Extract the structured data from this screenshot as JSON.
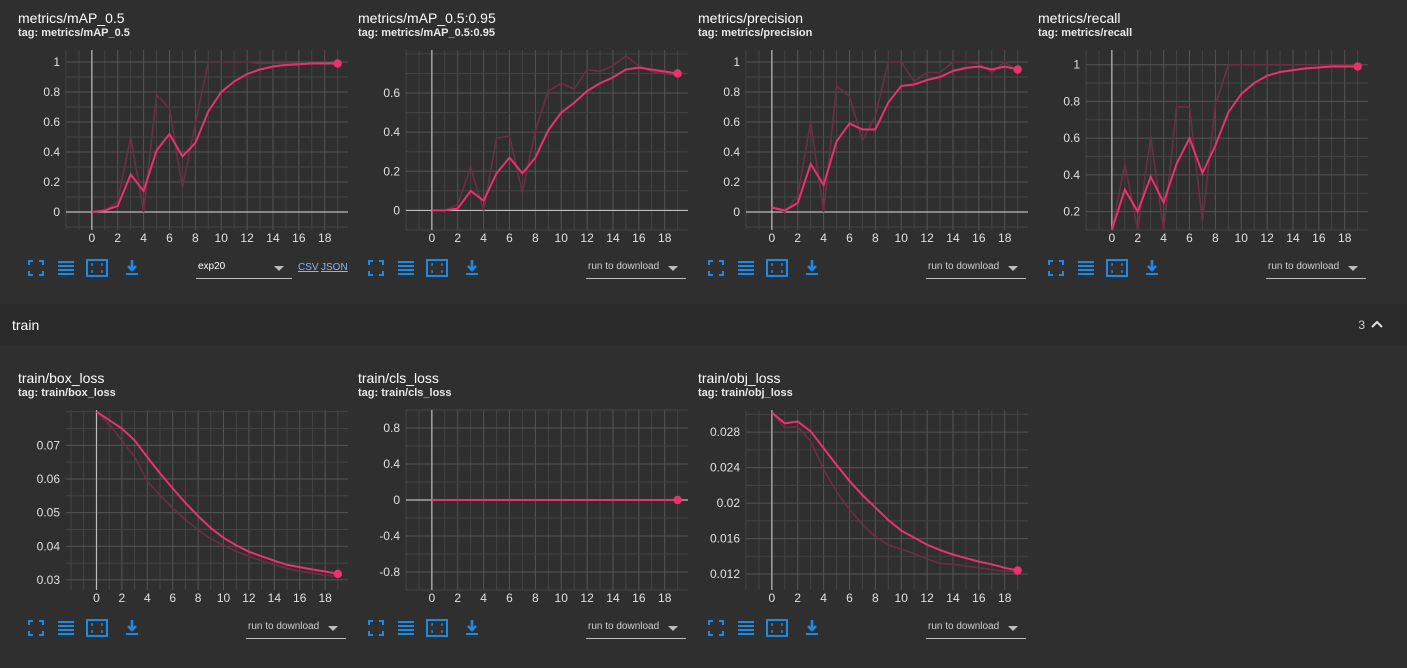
{
  "charts_top": [
    {
      "title": "metrics/mAP_0.5",
      "tag": "tag: metrics/mAP_0.5",
      "run_selector": "exp20",
      "links": [
        "CSV",
        "JSON"
      ]
    },
    {
      "title": "metrics/mAP_0.5:0.95",
      "tag": "tag: metrics/mAP_0.5:0.95",
      "run_selector": "run to download"
    },
    {
      "title": "metrics/precision",
      "tag": "tag: metrics/precision",
      "run_selector": "run to download"
    },
    {
      "title": "metrics/recall",
      "tag": "tag: metrics/recall",
      "run_selector": "run to download"
    }
  ],
  "section": {
    "title": "train",
    "count": "3"
  },
  "charts_bottom": [
    {
      "title": "train/box_loss",
      "tag": "tag: train/box_loss",
      "run_selector": "run to download"
    },
    {
      "title": "train/cls_loss",
      "tag": "tag: train/cls_loss",
      "run_selector": "run to download"
    },
    {
      "title": "train/obj_loss",
      "tag": "tag: train/obj_loss",
      "run_selector": "run to download"
    }
  ],
  "colors": {
    "smoothed": "#e8336d",
    "raw": "#6b2f44",
    "grid": "#5a5a5a",
    "axis": "#bdbdbd",
    "button": "#1e88e5"
  },
  "chart_data": [
    {
      "type": "line",
      "title": "metrics/mAP_0.5",
      "x": [
        0,
        1,
        2,
        3,
        4,
        5,
        6,
        7,
        8,
        9,
        10,
        11,
        12,
        13,
        14,
        15,
        16,
        17,
        18,
        19
      ],
      "series": [
        {
          "values": [
            0.0,
            0.01,
            0.04,
            0.25,
            0.14,
            0.41,
            0.52,
            0.37,
            0.46,
            0.67,
            0.8,
            0.87,
            0.92,
            0.95,
            0.97,
            0.98,
            0.985,
            0.99,
            0.99,
            0.99
          ]
        },
        {
          "values": [
            0.0,
            0.01,
            0.07,
            0.5,
            0.0,
            0.78,
            0.69,
            0.16,
            0.59,
            1.0,
            1.0,
            1.0,
            1.0,
            0.99,
            0.99,
            0.99,
            0.99,
            0.99,
            0.99,
            0.99
          ]
        }
      ],
      "xlim": [
        -2,
        19.8
      ],
      "ylim": [
        -0.12,
        1.08
      ],
      "yticks": [
        0,
        0.2,
        0.4,
        0.6,
        0.8,
        1
      ],
      "xticks": [
        0,
        2,
        4,
        6,
        8,
        10,
        12,
        14,
        16,
        18
      ]
    },
    {
      "type": "line",
      "title": "metrics/mAP_0.5:0.95",
      "x": [
        0,
        1,
        2,
        3,
        4,
        5,
        6,
        7,
        8,
        9,
        10,
        11,
        12,
        13,
        14,
        15,
        16,
        17,
        18,
        19
      ],
      "series": [
        {
          "values": [
            0.0,
            0.0,
            0.01,
            0.1,
            0.05,
            0.19,
            0.27,
            0.19,
            0.27,
            0.41,
            0.5,
            0.55,
            0.61,
            0.65,
            0.68,
            0.72,
            0.73,
            0.72,
            0.71,
            0.7
          ]
        },
        {
          "values": [
            0.0,
            0.0,
            0.03,
            0.22,
            0.0,
            0.37,
            0.38,
            0.09,
            0.41,
            0.61,
            0.65,
            0.62,
            0.72,
            0.71,
            0.74,
            0.79,
            0.74,
            0.71,
            0.7,
            0.69
          ]
        }
      ],
      "xlim": [
        -2,
        19.8
      ],
      "ylim": [
        -0.1,
        0.82
      ],
      "yticks": [
        0,
        0.2,
        0.4,
        0.6
      ],
      "xticks": [
        0,
        2,
        4,
        6,
        8,
        10,
        12,
        14,
        16,
        18
      ]
    },
    {
      "type": "line",
      "title": "metrics/precision",
      "x": [
        0,
        1,
        2,
        3,
        4,
        5,
        6,
        7,
        8,
        9,
        10,
        11,
        12,
        13,
        14,
        15,
        16,
        17,
        18,
        19
      ],
      "series": [
        {
          "values": [
            0.03,
            0.01,
            0.06,
            0.32,
            0.18,
            0.47,
            0.59,
            0.55,
            0.55,
            0.73,
            0.84,
            0.85,
            0.88,
            0.9,
            0.94,
            0.96,
            0.97,
            0.95,
            0.97,
            0.95
          ]
        },
        {
          "values": [
            0.03,
            0.0,
            0.11,
            0.6,
            0.0,
            0.84,
            0.77,
            0.48,
            0.64,
            1.0,
            1.0,
            0.87,
            0.93,
            0.93,
            1.0,
            1.0,
            0.99,
            0.93,
            1.0,
            0.94
          ]
        }
      ],
      "xlim": [
        -2,
        19.8
      ],
      "ylim": [
        -0.12,
        1.08
      ],
      "yticks": [
        0,
        0.2,
        0.4,
        0.6,
        0.8,
        1
      ],
      "xticks": [
        0,
        2,
        4,
        6,
        8,
        10,
        12,
        14,
        16,
        18
      ]
    },
    {
      "type": "line",
      "title": "metrics/recall",
      "x": [
        0,
        1,
        2,
        3,
        4,
        5,
        6,
        7,
        8,
        9,
        10,
        11,
        12,
        13,
        14,
        15,
        16,
        17,
        18,
        19
      ],
      "series": [
        {
          "values": [
            0.1,
            0.32,
            0.2,
            0.39,
            0.25,
            0.46,
            0.6,
            0.41,
            0.56,
            0.74,
            0.84,
            0.9,
            0.94,
            0.96,
            0.97,
            0.98,
            0.985,
            0.99,
            0.99,
            0.99
          ]
        },
        {
          "values": [
            0.1,
            0.46,
            0.1,
            0.61,
            0.1,
            0.77,
            0.77,
            0.15,
            0.78,
            1.0,
            1.0,
            1.0,
            1.0,
            1.0,
            1.0,
            1.0,
            1.0,
            1.0,
            1.0,
            1.0
          ]
        }
      ],
      "xlim": [
        -2,
        19.8
      ],
      "ylim": [
        0.1,
        1.08
      ],
      "yticks": [
        0.2,
        0.4,
        0.6,
        0.8,
        1
      ],
      "xticks": [
        0,
        2,
        4,
        6,
        8,
        10,
        12,
        14,
        16,
        18
      ]
    },
    {
      "type": "line",
      "title": "train/box_loss",
      "x": [
        0,
        1,
        2,
        3,
        4,
        5,
        6,
        7,
        8,
        9,
        10,
        11,
        12,
        13,
        14,
        15,
        16,
        17,
        18,
        19
      ],
      "series": [
        {
          "values": [
            0.08,
            0.0775,
            0.075,
            0.0715,
            0.0665,
            0.0617,
            0.0572,
            0.0529,
            0.049,
            0.0454,
            0.0425,
            0.0403,
            0.0384,
            0.037,
            0.0357,
            0.0345,
            0.0338,
            0.0331,
            0.0325,
            0.0318
          ]
        },
        {
          "values": [
            0.08,
            0.0762,
            0.0715,
            0.0665,
            0.0593,
            0.0552,
            0.0513,
            0.0479,
            0.0449,
            0.0422,
            0.0403,
            0.0385,
            0.037,
            0.0357,
            0.0345,
            0.0334,
            0.0326,
            0.032,
            0.0314,
            0.031
          ]
        }
      ],
      "xlim": [
        -2.4,
        19.8
      ],
      "ylim": [
        0.027,
        0.0805
      ],
      "yticks": [
        0.03,
        0.04,
        0.05,
        0.06,
        0.07
      ],
      "xticks": [
        0,
        2,
        4,
        6,
        8,
        10,
        12,
        14,
        16,
        18
      ]
    },
    {
      "type": "line",
      "title": "train/cls_loss",
      "x": [
        0,
        1,
        2,
        3,
        4,
        5,
        6,
        7,
        8,
        9,
        10,
        11,
        12,
        13,
        14,
        15,
        16,
        17,
        18,
        19
      ],
      "series": [
        {
          "values": [
            0,
            0,
            0,
            0,
            0,
            0,
            0,
            0,
            0,
            0,
            0,
            0,
            0,
            0,
            0,
            0,
            0,
            0,
            0,
            0
          ]
        },
        {
          "values": [
            0,
            0,
            0,
            0,
            0,
            0,
            0,
            0,
            0,
            0,
            0,
            0,
            0,
            0,
            0,
            0,
            0,
            0,
            0,
            0
          ]
        }
      ],
      "xlim": [
        -2,
        19.8
      ],
      "ylim": [
        -1.0,
        1.0
      ],
      "yticks": [
        -0.8,
        -0.4,
        0,
        0.4,
        0.8
      ],
      "xticks": [
        0,
        2,
        4,
        6,
        8,
        10,
        12,
        14,
        16,
        18
      ]
    },
    {
      "type": "line",
      "title": "train/obj_loss",
      "x": [
        0,
        1,
        2,
        3,
        4,
        5,
        6,
        7,
        8,
        9,
        10,
        11,
        12,
        13,
        14,
        15,
        16,
        17,
        18,
        19
      ],
      "series": [
        {
          "values": [
            0.0302,
            0.029,
            0.0292,
            0.0281,
            0.0262,
            0.0243,
            0.0225,
            0.0209,
            0.0195,
            0.0181,
            0.0169,
            0.0161,
            0.0153,
            0.0147,
            0.0142,
            0.0138,
            0.0134,
            0.0131,
            0.0127,
            0.0124
          ]
        },
        {
          "values": [
            0.0302,
            0.0285,
            0.0286,
            0.027,
            0.0238,
            0.0213,
            0.0193,
            0.0176,
            0.0162,
            0.0153,
            0.0148,
            0.0143,
            0.0137,
            0.0132,
            0.0131,
            0.0129,
            0.0127,
            0.0125,
            0.0123,
            0.0123
          ]
        }
      ],
      "xlim": [
        -2,
        19.8
      ],
      "ylim": [
        0.0102,
        0.0305
      ],
      "yticks": [
        0.012,
        0.016,
        0.02,
        0.024,
        0.028
      ],
      "xticks": [
        0,
        2,
        4,
        6,
        8,
        10,
        12,
        14,
        16,
        18
      ]
    }
  ]
}
